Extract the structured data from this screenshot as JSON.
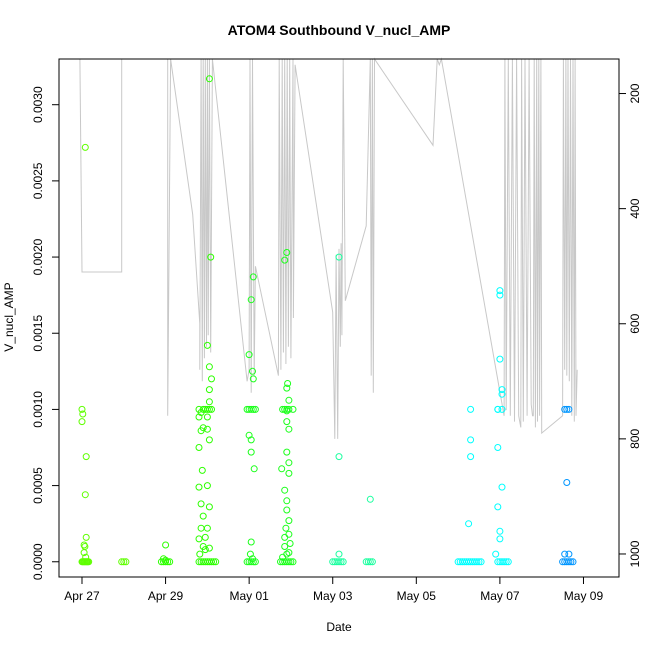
{
  "chart_data": {
    "type": "scatter",
    "title": "ATOM4 Southbound V_nucl_AMP",
    "xlabel": "Date",
    "ylabel": "V_nucl_AMP",
    "x_ticks": [
      "Apr 27",
      "Apr 29",
      "May 01",
      "May 03",
      "May 05",
      "May 07",
      "May 09"
    ],
    "x_tick_values": [
      0,
      2,
      4,
      6,
      8,
      10,
      12
    ],
    "xlim": [
      -0.55,
      12.85
    ],
    "ylim": [
      -0.0001,
      0.0033
    ],
    "y_ticks": [
      "0.0000",
      "0.0005",
      "0.0010",
      "0.0015",
      "0.0020",
      "0.0025",
      "0.0030"
    ],
    "y_tick_values": [
      0,
      0.0005,
      0.001,
      0.0015,
      0.002,
      0.0025,
      0.003
    ],
    "y2_ticks": [
      "200",
      "400",
      "600",
      "800",
      "1000"
    ],
    "y2_tick_values": [
      200,
      400,
      600,
      800,
      1000
    ],
    "y2lim": [
      1040,
      140
    ],
    "secondary_series_color": "#c8c8c8",
    "secondary_series": [
      [
        -0.05,
        140
      ],
      [
        0.0,
        510
      ],
      [
        0.95,
        510
      ],
      [
        0.95,
        140
      ],
      [
        1.9,
        140
      ],
      [
        2.05,
        140
      ],
      [
        2.05,
        760
      ],
      [
        2.12,
        140
      ],
      [
        2.65,
        410
      ],
      [
        2.82,
        600
      ],
      [
        2.82,
        680
      ],
      [
        2.85,
        140
      ],
      [
        2.88,
        700
      ],
      [
        2.9,
        140
      ],
      [
        2.93,
        660
      ],
      [
        2.95,
        140
      ],
      [
        2.98,
        640
      ],
      [
        3.0,
        140
      ],
      [
        3.02,
        620
      ],
      [
        3.05,
        140
      ],
      [
        3.08,
        650
      ],
      [
        3.12,
        140
      ],
      [
        3.95,
        700
      ],
      [
        4.0,
        680
      ],
      [
        4.02,
        140
      ],
      [
        4.05,
        720
      ],
      [
        4.08,
        140
      ],
      [
        4.12,
        690
      ],
      [
        4.15,
        500
      ],
      [
        4.7,
        690
      ],
      [
        4.72,
        140
      ],
      [
        4.76,
        680
      ],
      [
        4.79,
        140
      ],
      [
        4.82,
        650
      ],
      [
        4.85,
        140
      ],
      [
        4.88,
        670
      ],
      [
        4.91,
        140
      ],
      [
        4.94,
        640
      ],
      [
        4.97,
        140
      ],
      [
        5.0,
        660
      ],
      [
        5.05,
        140
      ],
      [
        5.06,
        590
      ],
      [
        5.1,
        150
      ],
      [
        6.0,
        580
      ],
      [
        6.05,
        800
      ],
      [
        6.08,
        480
      ],
      [
        6.12,
        800
      ],
      [
        6.15,
        470
      ],
      [
        6.18,
        640
      ],
      [
        6.2,
        460
      ],
      [
        6.22,
        620
      ],
      [
        6.25,
        140
      ],
      [
        6.3,
        560
      ],
      [
        6.8,
        430
      ],
      [
        6.9,
        140
      ],
      [
        6.92,
        690
      ],
      [
        6.95,
        140
      ],
      [
        6.97,
        720
      ],
      [
        7.0,
        140
      ],
      [
        8.4,
        290
      ],
      [
        8.5,
        140
      ],
      [
        8.55,
        150
      ],
      [
        8.6,
        140
      ],
      [
        10.1,
        760
      ],
      [
        10.12,
        140
      ],
      [
        10.15,
        750
      ],
      [
        10.2,
        140
      ],
      [
        10.25,
        760
      ],
      [
        10.3,
        140
      ],
      [
        10.35,
        770
      ],
      [
        10.4,
        140
      ],
      [
        10.45,
        760
      ],
      [
        10.5,
        780
      ],
      [
        10.52,
        140
      ],
      [
        10.56,
        770
      ],
      [
        10.6,
        140
      ],
      [
        10.65,
        760
      ],
      [
        10.7,
        140
      ],
      [
        10.75,
        740
      ],
      [
        10.78,
        760
      ],
      [
        10.8,
        760
      ],
      [
        10.82,
        140
      ],
      [
        10.85,
        780
      ],
      [
        10.88,
        140
      ],
      [
        10.9,
        770
      ],
      [
        10.93,
        140
      ],
      [
        10.95,
        760
      ],
      [
        10.98,
        140
      ],
      [
        11.0,
        790
      ],
      [
        11.5,
        760
      ],
      [
        11.52,
        140
      ],
      [
        11.55,
        680
      ],
      [
        11.58,
        140
      ],
      [
        11.6,
        690
      ],
      [
        11.63,
        140
      ],
      [
        11.66,
        700
      ],
      [
        11.69,
        140
      ],
      [
        11.72,
        760
      ],
      [
        11.75,
        140
      ],
      [
        11.78,
        770
      ],
      [
        11.8,
        140
      ],
      [
        11.82,
        760
      ],
      [
        11.85,
        680
      ]
    ],
    "series": [
      {
        "color": "#5fff00",
        "points": [
          [
            0.0,
            0
          ],
          [
            0.02,
            0
          ],
          [
            0.04,
            0
          ],
          [
            0.06,
            0
          ],
          [
            0.08,
            0
          ],
          [
            0.1,
            0
          ],
          [
            0.12,
            0
          ],
          [
            0.14,
            0
          ],
          [
            0.16,
            0
          ],
          [
            0.0,
            0.001
          ],
          [
            0.02,
            0.00097
          ],
          [
            0.0,
            0.00092
          ],
          [
            0.08,
            0.00272
          ],
          [
            0.1,
            0.00069
          ],
          [
            0.08,
            0.00044
          ],
          [
            0.1,
            0.00016
          ],
          [
            0.07,
            0.0001
          ],
          [
            0.05,
            6e-05
          ],
          [
            0.09,
            3e-05
          ],
          [
            0.05,
            0.00011
          ],
          [
            0.95,
            0
          ],
          [
            1.0,
            0
          ],
          [
            1.05,
            0
          ]
        ]
      },
      {
        "color": "#2dff00",
        "points": [
          [
            1.9,
            0
          ],
          [
            1.95,
            0
          ],
          [
            2.0,
            0
          ],
          [
            2.05,
            0
          ],
          [
            2.1,
            0
          ],
          [
            1.95,
            2e-05
          ],
          [
            2.0,
            1e-05
          ],
          [
            2.0,
            0.00011
          ],
          [
            2.8,
            0
          ],
          [
            2.85,
            0
          ],
          [
            2.9,
            0
          ],
          [
            2.95,
            0
          ],
          [
            3.0,
            0
          ],
          [
            3.05,
            0
          ],
          [
            3.1,
            0
          ],
          [
            3.15,
            0
          ],
          [
            3.2,
            0
          ],
          [
            2.8,
            0.001
          ],
          [
            2.85,
            0.00098
          ],
          [
            2.8,
            0.00095
          ],
          [
            2.9,
            0.001
          ],
          [
            2.95,
            0.001
          ],
          [
            3.0,
            0.001
          ],
          [
            3.05,
            0.001
          ],
          [
            3.1,
            0.001
          ],
          [
            2.9,
            0.00088
          ],
          [
            2.85,
            0.00086
          ],
          [
            3.0,
            0.00087
          ],
          [
            2.8,
            0.00075
          ],
          [
            2.88,
            0.0006
          ],
          [
            2.8,
            0.00049
          ],
          [
            2.85,
            0.00038
          ],
          [
            2.9,
            0.0003
          ],
          [
            2.85,
            0.00022
          ],
          [
            2.8,
            0.00015
          ],
          [
            2.9,
            0.0001
          ],
          [
            2.82,
            5e-05
          ],
          [
            2.95,
            0.00016
          ],
          [
            3.0,
            0.00022
          ],
          [
            3.05,
            0.00036
          ],
          [
            3.0,
            0.0005
          ],
          [
            3.05,
            0.0008
          ],
          [
            3.0,
            0.00095
          ],
          [
            3.05,
            0.00105
          ],
          [
            3.05,
            0.00113
          ],
          [
            3.1,
            0.0012
          ],
          [
            3.05,
            0.00128
          ],
          [
            3.0,
            0.00142
          ],
          [
            3.08,
            0.002
          ],
          [
            3.05,
            0.00317
          ],
          [
            2.95,
            8e-05
          ],
          [
            3.05,
            9e-05
          ]
        ]
      },
      {
        "color": "#1cff1c",
        "points": [
          [
            3.95,
            0
          ],
          [
            4.0,
            0
          ],
          [
            4.05,
            0
          ],
          [
            4.1,
            0
          ],
          [
            4.15,
            0
          ],
          [
            3.95,
            0.001
          ],
          [
            4.0,
            0.001
          ],
          [
            4.05,
            0.001
          ],
          [
            4.1,
            0.001
          ],
          [
            4.15,
            0.001
          ],
          [
            4.0,
            0.00083
          ],
          [
            4.05,
            0.0008
          ],
          [
            4.0,
            0.00136
          ],
          [
            4.05,
            0.00172
          ],
          [
            4.1,
            0.00187
          ],
          [
            4.08,
            0.00125
          ],
          [
            4.1,
            0.0012
          ],
          [
            4.05,
            0.00072
          ],
          [
            4.12,
            0.00061
          ],
          [
            4.05,
            0.00013
          ],
          [
            4.03,
            5e-05
          ],
          [
            4.08,
            2e-05
          ],
          [
            4.75,
            0
          ],
          [
            4.8,
            0
          ],
          [
            4.85,
            0
          ],
          [
            4.9,
            0
          ],
          [
            4.95,
            0
          ],
          [
            5.0,
            0
          ],
          [
            5.05,
            0
          ],
          [
            4.8,
            0.001
          ],
          [
            4.85,
            0.001
          ],
          [
            4.9,
            0.001
          ],
          [
            4.95,
            0.001
          ],
          [
            5.05,
            0.001
          ],
          [
            4.9,
            0.00099
          ],
          [
            4.85,
            0.00198
          ],
          [
            4.9,
            0.00203
          ],
          [
            4.9,
            0.00114
          ],
          [
            4.92,
            0.00117
          ],
          [
            4.95,
            0.00106
          ],
          [
            4.9,
            0.00092
          ],
          [
            4.95,
            0.00087
          ],
          [
            4.9,
            0.00072
          ],
          [
            4.95,
            0.00065
          ],
          [
            4.95,
            0.00058
          ],
          [
            4.78,
            0.00061
          ],
          [
            4.85,
            0.00047
          ],
          [
            4.9,
            0.0004
          ],
          [
            4.95,
            0.00027
          ],
          [
            4.88,
            0.00022
          ],
          [
            4.95,
            0.00018
          ],
          [
            4.85,
            0.0001
          ],
          [
            4.9,
            5e-05
          ],
          [
            4.8,
            3e-05
          ],
          [
            4.95,
            6e-05
          ],
          [
            4.9,
            0.00034
          ],
          [
            4.85,
            0.00016
          ],
          [
            4.98,
            0.00012
          ]
        ]
      },
      {
        "color": "#1cffa0",
        "points": [
          [
            6.0,
            0
          ],
          [
            6.05,
            0
          ],
          [
            6.1,
            0
          ],
          [
            6.15,
            0
          ],
          [
            6.2,
            0
          ],
          [
            6.25,
            0
          ],
          [
            6.15,
            0.002
          ],
          [
            6.15,
            0.00069
          ],
          [
            6.15,
            5e-05
          ],
          [
            6.8,
            0
          ],
          [
            6.85,
            0
          ],
          [
            6.9,
            0
          ],
          [
            6.95,
            0
          ],
          [
            6.9,
            0.00041
          ]
        ]
      },
      {
        "color": "#00ffff",
        "points": [
          [
            9.0,
            0
          ],
          [
            9.05,
            0
          ],
          [
            9.1,
            0
          ],
          [
            9.15,
            0
          ],
          [
            9.2,
            0
          ],
          [
            9.25,
            0
          ],
          [
            9.3,
            0
          ],
          [
            9.35,
            0
          ],
          [
            9.4,
            0
          ],
          [
            9.45,
            0
          ],
          [
            9.5,
            0
          ],
          [
            9.55,
            0
          ],
          [
            9.3,
            0.001
          ],
          [
            9.3,
            0.0008
          ],
          [
            9.3,
            0.00069
          ],
          [
            9.25,
            0.00025
          ],
          [
            9.95,
            0
          ],
          [
            10.0,
            0
          ],
          [
            10.05,
            0
          ],
          [
            10.1,
            0
          ],
          [
            10.15,
            0
          ],
          [
            10.2,
            0
          ],
          [
            9.95,
            0.001
          ],
          [
            10.05,
            0.001
          ],
          [
            10.0,
            0.00175
          ],
          [
            10.0,
            0.00178
          ],
          [
            10.0,
            0.00133
          ],
          [
            10.05,
            0.00113
          ],
          [
            10.05,
            0.0011
          ],
          [
            9.95,
            0.001
          ],
          [
            9.95,
            0.00075
          ],
          [
            10.05,
            0.00049
          ],
          [
            9.95,
            0.00036
          ],
          [
            10.0,
            0.0002
          ],
          [
            10.0,
            0.00015
          ],
          [
            9.9,
            5e-05
          ]
        ]
      },
      {
        "color": "#0096ff",
        "points": [
          [
            11.5,
            0
          ],
          [
            11.55,
            0
          ],
          [
            11.6,
            0
          ],
          [
            11.65,
            0
          ],
          [
            11.7,
            0
          ],
          [
            11.75,
            0
          ],
          [
            11.55,
            0.001
          ],
          [
            11.6,
            0.001
          ],
          [
            11.65,
            0.001
          ],
          [
            11.6,
            0.00052
          ],
          [
            11.55,
            5e-05
          ],
          [
            11.65,
            5e-05
          ]
        ]
      }
    ]
  }
}
